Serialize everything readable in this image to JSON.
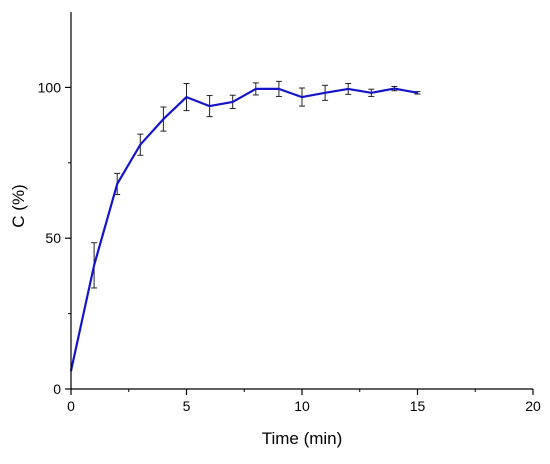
{
  "chart_data": {
    "type": "line",
    "title": "",
    "xlabel": "Time (min)",
    "ylabel": "C (%)",
    "xlim": [
      0,
      20
    ],
    "ylim": [
      0,
      125
    ],
    "x_ticks": [
      0,
      5,
      10,
      15,
      20
    ],
    "y_ticks": [
      0,
      50,
      100
    ],
    "grid": false,
    "legend": "none",
    "series": [
      {
        "color": "#1515c8",
        "x": [
          0,
          1,
          2,
          3,
          4,
          5,
          6,
          7,
          8,
          9,
          10,
          11,
          12,
          13,
          14,
          15
        ],
        "y": [
          6,
          41,
          68,
          81,
          89.5,
          96.8,
          93.8,
          95.2,
          99.5,
          99.5,
          96.8,
          98.2,
          99.5,
          98.2,
          99.6,
          98.2
        ],
        "error": [
          0,
          7.5,
          3.5,
          3.5,
          4.0,
          4.5,
          3.5,
          2.2,
          2.0,
          2.5,
          3.0,
          2.5,
          1.8,
          1.2,
          0.7,
          0.4
        ]
      }
    ]
  }
}
